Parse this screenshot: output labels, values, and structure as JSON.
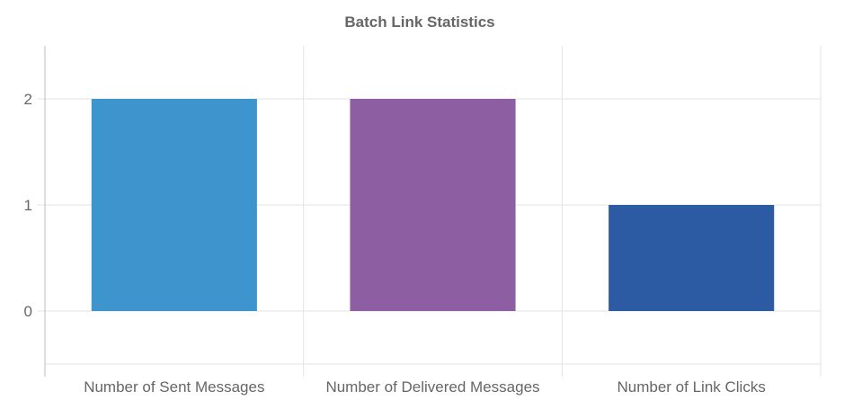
{
  "chart_data": {
    "type": "bar",
    "title": "Batch Link Statistics",
    "categories": [
      "Number of Sent Messages",
      "Number of Delivered Messages",
      "Number of Link Clicks"
    ],
    "values": [
      2,
      2,
      1
    ],
    "colors": [
      "#3e95cd",
      "#8e5ea2",
      "#2c5ba3"
    ],
    "y_ticks": [
      "0",
      "1",
      "2"
    ],
    "ylim": [
      -0.5,
      2.5
    ],
    "xlabel": "",
    "ylabel": "",
    "grid": true,
    "legend": "none"
  }
}
